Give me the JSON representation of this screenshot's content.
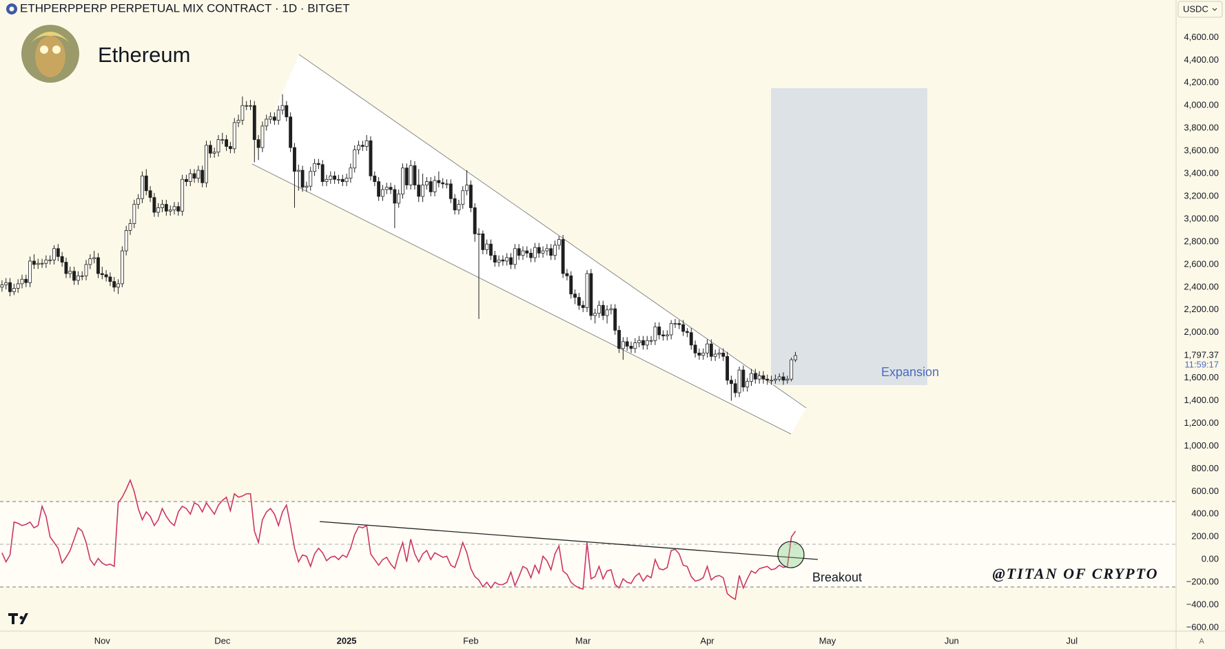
{
  "chart_data": {
    "type": "candlestick",
    "title": "ETHPERPPERP PERPETUAL MIX CONTRACT · 1D · BITGET",
    "subtitle": "Ethereum",
    "currency": "USDC",
    "last_price_label": "1,797.37",
    "countdown": "11:59:17",
    "annotations": [
      "Expansion",
      "Breakout",
      "@TITAN OF CRYPTO"
    ],
    "corner_label": "A",
    "up_color": "#ffffff",
    "down_color": "#1f1f1f",
    "wick_color": "#1f1f1f",
    "oscillator_color": "#cc3366",
    "grid": false,
    "xlim": [
      -0.5,
      293
    ],
    "xticks": [
      {
        "value": 25,
        "label": "Nov"
      },
      {
        "value": 55,
        "label": "Dec"
      },
      {
        "value": 86,
        "label": "2025"
      },
      {
        "value": 117,
        "label": "Feb"
      },
      {
        "value": 145,
        "label": "Mar"
      },
      {
        "value": 176,
        "label": "Apr"
      },
      {
        "value": 206,
        "label": "May"
      },
      {
        "value": 237,
        "label": "Jun"
      },
      {
        "value": 267,
        "label": "Jul"
      }
    ],
    "ylim": [
      -630,
      4930
    ],
    "yticks": [
      {
        "value": 4600,
        "label": "4,600.00"
      },
      {
        "value": 4400,
        "label": "4,400.00"
      },
      {
        "value": 4200,
        "label": "4,200.00"
      },
      {
        "value": 4000,
        "label": "4,000.00"
      },
      {
        "value": 3800,
        "label": "3,800.00"
      },
      {
        "value": 3600,
        "label": "3,600.00"
      },
      {
        "value": 3400,
        "label": "3,400.00"
      },
      {
        "value": 3200,
        "label": "3,200.00"
      },
      {
        "value": 3000,
        "label": "3,000.00"
      },
      {
        "value": 2800,
        "label": "2,800.00"
      },
      {
        "value": 2600,
        "label": "2,600.00"
      },
      {
        "value": 2400,
        "label": "2,400.00"
      },
      {
        "value": 2200,
        "label": "2,200.00"
      },
      {
        "value": 2000,
        "label": "2,000.00"
      },
      {
        "value": 1600,
        "label": "1,600.00"
      },
      {
        "value": 1400,
        "label": "1,400.00"
      },
      {
        "value": 1200,
        "label": "1,200.00"
      },
      {
        "value": 1000,
        "label": "1,000.00"
      },
      {
        "value": 800,
        "label": "800.00"
      },
      {
        "value": 600,
        "label": "600.00"
      },
      {
        "value": 400,
        "label": "400.00"
      },
      {
        "value": 200,
        "label": "200.00"
      },
      {
        "value": 0,
        "label": "0.00"
      },
      {
        "value": -200,
        "label": "−200.00"
      },
      {
        "value": -400,
        "label": "−400.00"
      },
      {
        "value": -600,
        "label": "−600.00"
      }
    ],
    "ohlc": [
      [
        2400,
        2460,
        2360,
        2420
      ],
      [
        2420,
        2480,
        2380,
        2440
      ],
      [
        2440,
        2480,
        2320,
        2360
      ],
      [
        2360,
        2430,
        2330,
        2390
      ],
      [
        2390,
        2470,
        2350,
        2430
      ],
      [
        2430,
        2510,
        2390,
        2470
      ],
      [
        2470,
        2510,
        2400,
        2440
      ],
      [
        2440,
        2670,
        2400,
        2630
      ],
      [
        2630,
        2690,
        2560,
        2600
      ],
      [
        2600,
        2650,
        2560,
        2610
      ],
      [
        2610,
        2650,
        2570,
        2610
      ],
      [
        2610,
        2680,
        2570,
        2640
      ],
      [
        2640,
        2680,
        2600,
        2640
      ],
      [
        2640,
        2770,
        2600,
        2740
      ],
      [
        2740,
        2780,
        2630,
        2670
      ],
      [
        2670,
        2710,
        2580,
        2620
      ],
      [
        2620,
        2660,
        2480,
        2520
      ],
      [
        2520,
        2580,
        2480,
        2540
      ],
      [
        2540,
        2580,
        2420,
        2460
      ],
      [
        2460,
        2540,
        2420,
        2500
      ],
      [
        2500,
        2540,
        2460,
        2500
      ],
      [
        2500,
        2640,
        2460,
        2600
      ],
      [
        2600,
        2690,
        2560,
        2650
      ],
      [
        2650,
        2720,
        2610,
        2660
      ],
      [
        2660,
        2700,
        2480,
        2520
      ],
      [
        2520,
        2580,
        2470,
        2510
      ],
      [
        2510,
        2550,
        2450,
        2490
      ],
      [
        2490,
        2530,
        2410,
        2450
      ],
      [
        2450,
        2490,
        2360,
        2400
      ],
      [
        2400,
        2470,
        2340,
        2430
      ],
      [
        2430,
        2760,
        2400,
        2720
      ],
      [
        2720,
        2940,
        2680,
        2900
      ],
      [
        2900,
        3000,
        2860,
        2960
      ],
      [
        2960,
        3170,
        2920,
        3130
      ],
      [
        3130,
        3220,
        3090,
        3180
      ],
      [
        3180,
        3420,
        3140,
        3380
      ],
      [
        3380,
        3440,
        3210,
        3250
      ],
      [
        3250,
        3290,
        3150,
        3190
      ],
      [
        3190,
        3230,
        3020,
        3060
      ],
      [
        3060,
        3140,
        3020,
        3100
      ],
      [
        3100,
        3170,
        3060,
        3130
      ],
      [
        3130,
        3170,
        3030,
        3070
      ],
      [
        3070,
        3120,
        3030,
        3080
      ],
      [
        3080,
        3150,
        3040,
        3110
      ],
      [
        3110,
        3150,
        3030,
        3070
      ],
      [
        3070,
        3390,
        3030,
        3350
      ],
      [
        3350,
        3390,
        3290,
        3330
      ],
      [
        3330,
        3440,
        3290,
        3400
      ],
      [
        3400,
        3440,
        3320,
        3360
      ],
      [
        3360,
        3470,
        3320,
        3430
      ],
      [
        3430,
        3470,
        3280,
        3320
      ],
      [
        3320,
        3690,
        3280,
        3650
      ],
      [
        3650,
        3690,
        3540,
        3580
      ],
      [
        3580,
        3630,
        3540,
        3590
      ],
      [
        3590,
        3740,
        3550,
        3700
      ],
      [
        3700,
        3760,
        3660,
        3700
      ],
      [
        3700,
        3740,
        3600,
        3640
      ],
      [
        3640,
        3680,
        3580,
        3620
      ],
      [
        3620,
        3890,
        3580,
        3850
      ],
      [
        3850,
        3920,
        3810,
        3870
      ],
      [
        3870,
        4080,
        3830,
        4000
      ],
      [
        4000,
        4040,
        3960,
        4000
      ],
      [
        4000,
        4050,
        3960,
        4000
      ],
      [
        4000,
        4040,
        3500,
        3700
      ],
      [
        3700,
        3740,
        3520,
        3630
      ],
      [
        3630,
        3860,
        3590,
        3820
      ],
      [
        3820,
        3920,
        3780,
        3880
      ],
      [
        3880,
        3940,
        3840,
        3900
      ],
      [
        3900,
        3940,
        3830,
        3870
      ],
      [
        3870,
        4000,
        3830,
        3960
      ],
      [
        3960,
        4100,
        3920,
        4000
      ],
      [
        4000,
        4040,
        3860,
        3900
      ],
      [
        3900,
        3940,
        3590,
        3630
      ],
      [
        3630,
        3670,
        3100,
        3420
      ],
      [
        3420,
        3480,
        3250,
        3430
      ],
      [
        3430,
        3470,
        3240,
        3280
      ],
      [
        3280,
        3330,
        3240,
        3290
      ],
      [
        3290,
        3460,
        3250,
        3420
      ],
      [
        3420,
        3530,
        3380,
        3490
      ],
      [
        3490,
        3530,
        3440,
        3480
      ],
      [
        3480,
        3520,
        3290,
        3330
      ],
      [
        3330,
        3390,
        3290,
        3350
      ],
      [
        3350,
        3420,
        3310,
        3380
      ],
      [
        3380,
        3420,
        3310,
        3350
      ],
      [
        3350,
        3390,
        3310,
        3350
      ],
      [
        3350,
        3390,
        3290,
        3330
      ],
      [
        3330,
        3400,
        3290,
        3360
      ],
      [
        3360,
        3490,
        3320,
        3450
      ],
      [
        3450,
        3650,
        3410,
        3610
      ],
      [
        3610,
        3690,
        3570,
        3650
      ],
      [
        3650,
        3690,
        3600,
        3640
      ],
      [
        3640,
        3740,
        3600,
        3690
      ],
      [
        3690,
        3730,
        3340,
        3380
      ],
      [
        3380,
        3420,
        3290,
        3330
      ],
      [
        3330,
        3370,
        3160,
        3200
      ],
      [
        3200,
        3300,
        3160,
        3260
      ],
      [
        3260,
        3320,
        3220,
        3280
      ],
      [
        3280,
        3320,
        3220,
        3260
      ],
      [
        3260,
        3300,
        2920,
        3140
      ],
      [
        3140,
        3260,
        3100,
        3220
      ],
      [
        3220,
        3490,
        3180,
        3450
      ],
      [
        3450,
        3490,
        3260,
        3300
      ],
      [
        3300,
        3520,
        3260,
        3470
      ],
      [
        3470,
        3510,
        3260,
        3300
      ],
      [
        3300,
        3440,
        3150,
        3200
      ],
      [
        3200,
        3400,
        3150,
        3300
      ],
      [
        3300,
        3370,
        3260,
        3330
      ],
      [
        3330,
        3370,
        3200,
        3240
      ],
      [
        3240,
        3380,
        3200,
        3340
      ],
      [
        3340,
        3420,
        3280,
        3320
      ],
      [
        3320,
        3360,
        3270,
        3310
      ],
      [
        3310,
        3350,
        3270,
        3310
      ],
      [
        3310,
        3350,
        3140,
        3180
      ],
      [
        3180,
        3220,
        3040,
        3080
      ],
      [
        3080,
        3170,
        3040,
        3130
      ],
      [
        3130,
        3290,
        3090,
        3250
      ],
      [
        3250,
        3430,
        3210,
        3300
      ],
      [
        3300,
        3340,
        3060,
        3100
      ],
      [
        3100,
        3140,
        2800,
        2870
      ],
      [
        2870,
        2920,
        2120,
        2870
      ],
      [
        2870,
        2900,
        2690,
        2730
      ],
      [
        2730,
        2820,
        2690,
        2780
      ],
      [
        2780,
        2820,
        2640,
        2680
      ],
      [
        2680,
        2720,
        2580,
        2620
      ],
      [
        2620,
        2680,
        2580,
        2640
      ],
      [
        2640,
        2680,
        2590,
        2630
      ],
      [
        2630,
        2700,
        2590,
        2660
      ],
      [
        2660,
        2700,
        2560,
        2600
      ],
      [
        2600,
        2780,
        2560,
        2740
      ],
      [
        2740,
        2780,
        2640,
        2680
      ],
      [
        2680,
        2760,
        2640,
        2720
      ],
      [
        2720,
        2760,
        2660,
        2700
      ],
      [
        2700,
        2740,
        2620,
        2660
      ],
      [
        2660,
        2790,
        2620,
        2750
      ],
      [
        2750,
        2790,
        2660,
        2700
      ],
      [
        2700,
        2760,
        2660,
        2720
      ],
      [
        2720,
        2780,
        2680,
        2740
      ],
      [
        2740,
        2780,
        2640,
        2680
      ],
      [
        2680,
        2810,
        2640,
        2770
      ],
      [
        2770,
        2850,
        2730,
        2820
      ],
      [
        2820,
        2860,
        2480,
        2520
      ],
      [
        2520,
        2560,
        2460,
        2500
      ],
      [
        2500,
        2540,
        2300,
        2340
      ],
      [
        2340,
        2380,
        2250,
        2310
      ],
      [
        2310,
        2350,
        2200,
        2240
      ],
      [
        2240,
        2280,
        2180,
        2220
      ],
      [
        2220,
        2550,
        2180,
        2520
      ],
      [
        2520,
        2560,
        2110,
        2150
      ],
      [
        2150,
        2210,
        2080,
        2170
      ],
      [
        2170,
        2280,
        2130,
        2240
      ],
      [
        2240,
        2280,
        2110,
        2150
      ],
      [
        2150,
        2240,
        2080,
        2200
      ],
      [
        2200,
        2250,
        2160,
        2210
      ],
      [
        2210,
        2250,
        1980,
        2020
      ],
      [
        2020,
        2060,
        1820,
        1860
      ],
      [
        1860,
        1960,
        1760,
        1920
      ],
      [
        1920,
        1960,
        1840,
        1880
      ],
      [
        1880,
        1920,
        1820,
        1860
      ],
      [
        1860,
        1950,
        1820,
        1910
      ],
      [
        1910,
        1970,
        1870,
        1930
      ],
      [
        1930,
        1970,
        1850,
        1890
      ],
      [
        1890,
        1970,
        1850,
        1930
      ],
      [
        1930,
        1970,
        1890,
        1930
      ],
      [
        1930,
        2090,
        1890,
        2050
      ],
      [
        2050,
        2090,
        1940,
        1980
      ],
      [
        1980,
        2020,
        1930,
        1970
      ],
      [
        1970,
        2020,
        1930,
        1980
      ],
      [
        1980,
        2110,
        1940,
        2080
      ],
      [
        2080,
        2120,
        2040,
        2080
      ],
      [
        2080,
        2110,
        2030,
        2070
      ],
      [
        2070,
        2110,
        1970,
        2010
      ],
      [
        2010,
        2040,
        1960,
        2000
      ],
      [
        2000,
        2040,
        1850,
        1890
      ],
      [
        1890,
        1930,
        1780,
        1820
      ],
      [
        1820,
        1860,
        1760,
        1800
      ],
      [
        1800,
        1860,
        1760,
        1820
      ],
      [
        1820,
        1940,
        1780,
        1900
      ],
      [
        1900,
        1940,
        1750,
        1790
      ],
      [
        1790,
        1850,
        1750,
        1810
      ],
      [
        1810,
        1860,
        1770,
        1820
      ],
      [
        1820,
        1860,
        1750,
        1790
      ],
      [
        1790,
        1830,
        1540,
        1580
      ],
      [
        1580,
        1620,
        1400,
        1550
      ],
      [
        1550,
        1590,
        1430,
        1470
      ],
      [
        1470,
        1700,
        1430,
        1670
      ],
      [
        1670,
        1710,
        1480,
        1520
      ],
      [
        1520,
        1600,
        1480,
        1570
      ],
      [
        1570,
        1680,
        1530,
        1640
      ],
      [
        1640,
        1680,
        1550,
        1590
      ],
      [
        1590,
        1660,
        1550,
        1620
      ],
      [
        1620,
        1660,
        1550,
        1590
      ],
      [
        1590,
        1630,
        1540,
        1580
      ],
      [
        1580,
        1620,
        1540,
        1580
      ],
      [
        1580,
        1630,
        1550,
        1590
      ],
      [
        1590,
        1640,
        1570,
        1610
      ],
      [
        1610,
        1650,
        1540,
        1580
      ],
      [
        1580,
        1620,
        1550,
        1590
      ],
      [
        1590,
        1780,
        1570,
        1760
      ],
      [
        1760,
        1830,
        1740,
        1797.37
      ]
    ],
    "oscillator": {
      "values": [
        60,
        -20,
        40,
        330,
        320,
        300,
        310,
        330,
        280,
        300,
        470,
        380,
        200,
        150,
        100,
        -30,
        20,
        80,
        180,
        280,
        250,
        150,
        0,
        -50,
        10,
        -30,
        -50,
        -40,
        -60,
        500,
        550,
        620,
        700,
        600,
        450,
        350,
        420,
        380,
        300,
        350,
        450,
        380,
        330,
        300,
        420,
        470,
        450,
        400,
        500,
        480,
        420,
        500,
        450,
        400,
        480,
        520,
        550,
        430,
        580,
        550,
        560,
        580,
        580,
        250,
        150,
        350,
        420,
        450,
        400,
        300,
        420,
        480,
        300,
        100,
        -20,
        40,
        30,
        -60,
        50,
        100,
        60,
        -10,
        20,
        30,
        0,
        40,
        20,
        100,
        220,
        290,
        280,
        300,
        50,
        0,
        -50,
        0,
        20,
        -40,
        -80,
        50,
        150,
        -20,
        180,
        50,
        -20,
        50,
        80,
        0,
        60,
        40,
        20,
        30,
        -50,
        -70,
        30,
        150,
        60,
        -80,
        -150,
        -180,
        -240,
        -200,
        -250,
        -200,
        -220,
        -220,
        -200,
        -110,
        -230,
        -150,
        -60,
        -80,
        -160,
        -50,
        -120,
        30,
        -10,
        -90,
        50,
        120,
        -100,
        -130,
        -200,
        -230,
        -250,
        -260,
        150,
        -170,
        -150,
        -60,
        -170,
        -100,
        -90,
        -220,
        -250,
        -170,
        -200,
        -210,
        -150,
        -120,
        -190,
        -140,
        -160,
        0,
        -80,
        -90,
        -70,
        80,
        90,
        50,
        -50,
        -60,
        -150,
        -190,
        -180,
        -160,
        -60,
        -180,
        -150,
        -140,
        -160,
        -300,
        -330,
        -350,
        -140,
        -250,
        -170,
        -100,
        -120,
        -80,
        -70,
        -60,
        -90,
        -80,
        -50,
        -70,
        -60,
        200,
        250
      ]
    }
  }
}
